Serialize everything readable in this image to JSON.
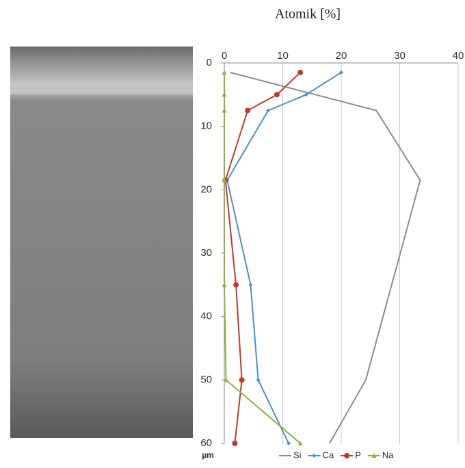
{
  "chart_data": {
    "type": "line",
    "title": "Atomik [%]",
    "y_label": "µm",
    "xlim": [
      0,
      40
    ],
    "xticks": [
      0,
      10,
      20,
      30,
      40
    ],
    "ylim": [
      0,
      60
    ],
    "yticks": [
      0,
      10,
      20,
      30,
      40,
      50,
      60
    ],
    "y_inverted": true,
    "grid": true,
    "legend": "bottom",
    "series": [
      {
        "name": "Si",
        "color": "#8c8c8c",
        "marker": "none",
        "x": [
          1,
          26,
          33.5,
          24.2,
          18
        ],
        "y": [
          1.5,
          7.5,
          18.5,
          50,
          60
        ]
      },
      {
        "name": "Ca",
        "color": "#4a8fd4",
        "marker": "diamond",
        "x": [
          20,
          14,
          7.5,
          0.5,
          4.5,
          5.8,
          11
        ],
        "y": [
          1.5,
          5,
          7.5,
          18.5,
          35,
          50,
          60
        ]
      },
      {
        "name": "P",
        "color": "#c0392b",
        "marker": "circle",
        "x": [
          13,
          9,
          4,
          0.2,
          2,
          3,
          1.8
        ],
        "y": [
          1.5,
          5,
          7.5,
          18.5,
          35,
          50,
          60
        ]
      },
      {
        "name": "Na",
        "color": "#8db33a",
        "marker": "triangle",
        "x": [
          0,
          0,
          0,
          0,
          0,
          0.3,
          13
        ],
        "y": [
          1.5,
          5,
          7.5,
          18.5,
          35,
          50,
          60
        ]
      }
    ]
  }
}
